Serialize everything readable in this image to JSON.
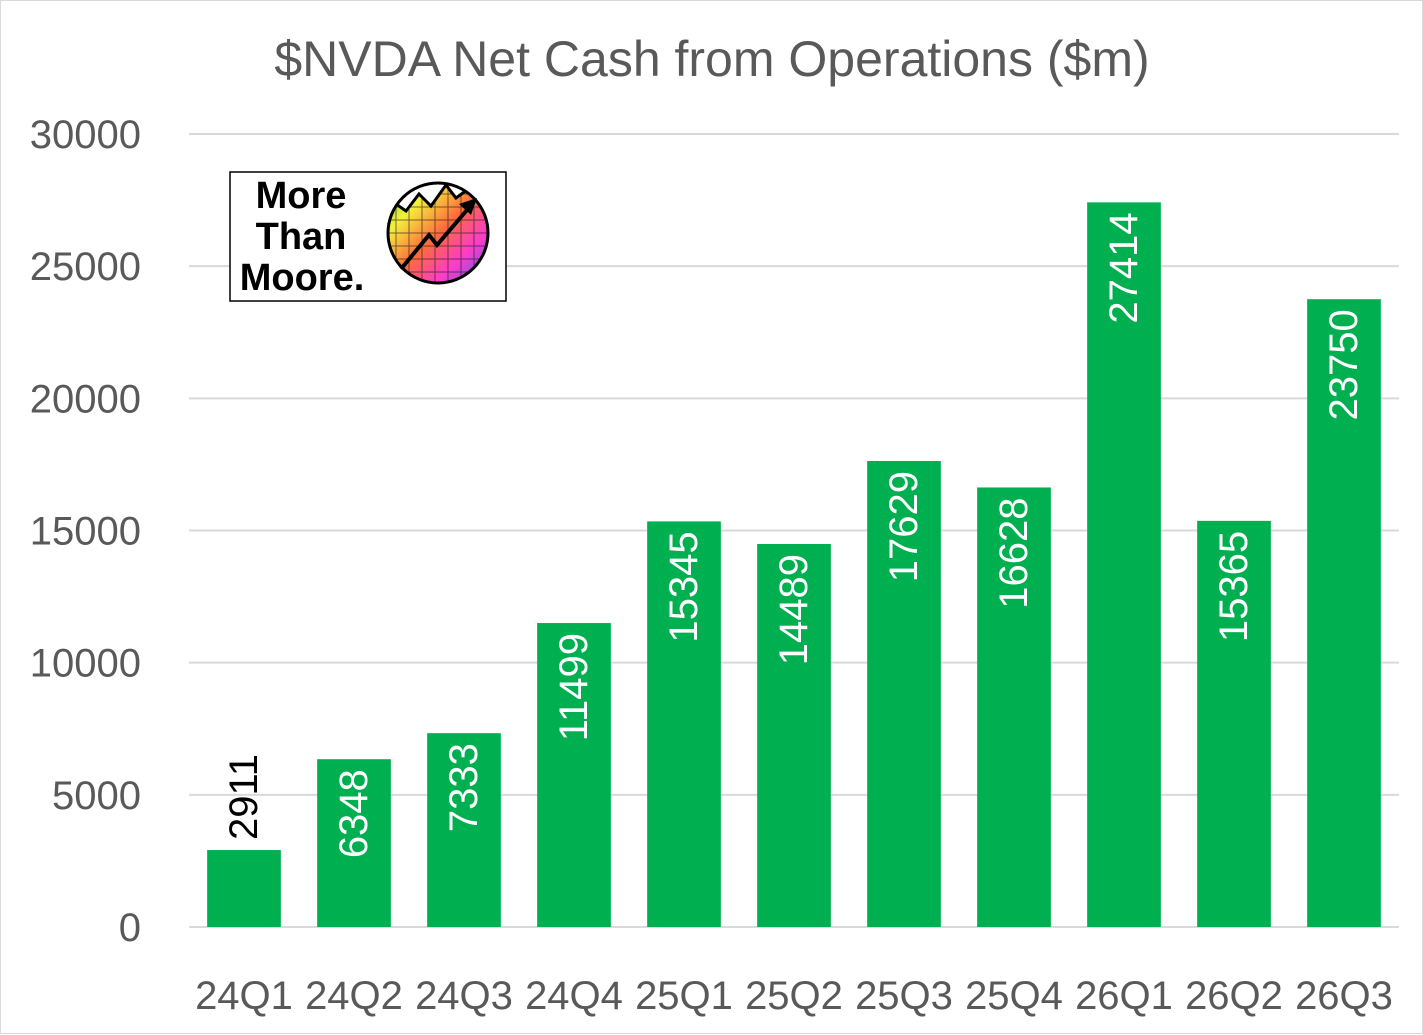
{
  "chart_data": {
    "type": "bar",
    "title": "$NVDA Net Cash from Operations ($m)",
    "xlabel": "",
    "ylabel": "",
    "categories": [
      "24Q1",
      "24Q2",
      "24Q3",
      "24Q4",
      "25Q1",
      "25Q2",
      "25Q3",
      "25Q4",
      "26Q1",
      "26Q2",
      "26Q3"
    ],
    "values": [
      2911,
      6348,
      7333,
      11499,
      15345,
      14489,
      17629,
      16628,
      27414,
      15365,
      23750
    ],
    "ylim": [
      0,
      30000
    ],
    "yticks": [
      0,
      5000,
      10000,
      15000,
      20000,
      25000,
      30000
    ],
    "grid": true,
    "legend": "none",
    "data_label_position": "inside-end-rotated"
  },
  "logo": {
    "lines": [
      "More",
      "Than",
      "Moore."
    ],
    "icon": "rainbow-chart-arrow-icon"
  },
  "colors": {
    "bar": "#00b050",
    "grid": "#d9d9d9",
    "text": "#595959",
    "label_inside": "#ffffff",
    "label_outside": "#000000"
  }
}
